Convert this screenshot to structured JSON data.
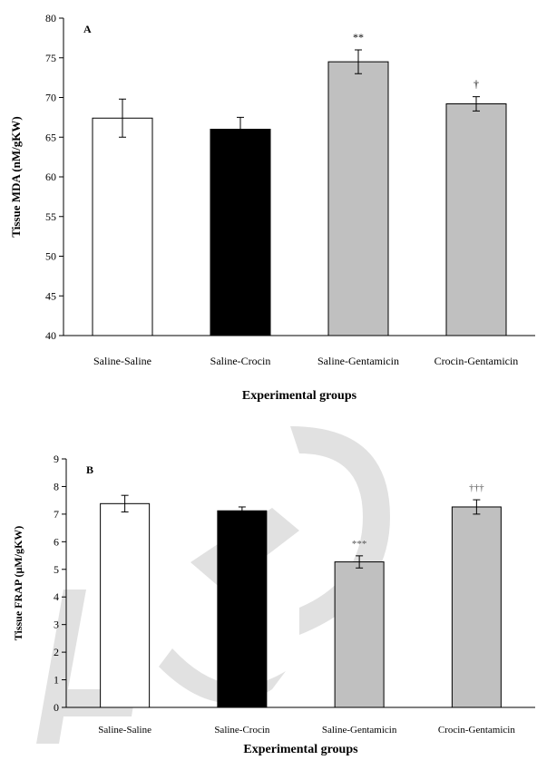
{
  "chart_data": [
    {
      "type": "bar",
      "panel_label": "A",
      "title": "",
      "xlabel": "Experimental groups",
      "ylabel": "Tissue MDA (nM/gKW)",
      "ylim": [
        40,
        80
      ],
      "yticks": [
        40,
        45,
        50,
        55,
        60,
        65,
        70,
        75,
        80
      ],
      "categories": [
        "Saline-Saline",
        "Saline-Crocin",
        "Saline-Gentamicin",
        "Crocin-Gentamicin"
      ],
      "values": [
        67.4,
        66.0,
        74.5,
        69.2
      ],
      "errors": [
        2.4,
        1.5,
        1.5,
        0.9
      ],
      "annotations": [
        "",
        "",
        "**",
        "†"
      ],
      "colors": [
        "#ffffff",
        "#000000",
        "#c0c0c0",
        "#c0c0c0"
      ],
      "grid": false
    },
    {
      "type": "bar",
      "panel_label": "B",
      "title": "",
      "xlabel": "Experimental groups",
      "ylabel": "Tissue FRAP (μM/gKW)",
      "ylim": [
        0,
        9
      ],
      "yticks": [
        0,
        1,
        2,
        3,
        4,
        5,
        6,
        7,
        8,
        9
      ],
      "categories": [
        "Saline-Saline",
        "Saline-Crocin",
        "Saline-Gentamicin",
        "Crocin-Gentamicin"
      ],
      "values": [
        7.38,
        7.12,
        5.27,
        7.26
      ],
      "errors": [
        0.3,
        0.14,
        0.22,
        0.26
      ],
      "annotations": [
        "",
        "",
        "***",
        "†††"
      ],
      "colors": [
        "#ffffff",
        "#000000",
        "#c0c0c0",
        "#c0c0c0"
      ],
      "grid": false
    }
  ]
}
